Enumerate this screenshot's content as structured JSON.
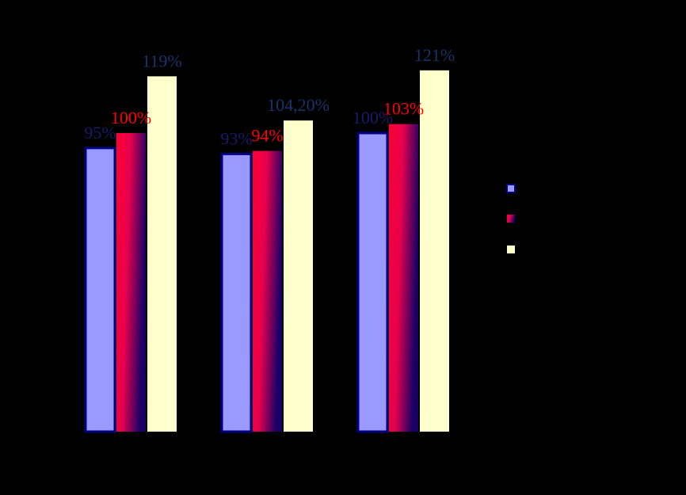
{
  "chart_data": {
    "type": "bar",
    "title": "",
    "xlabel": "",
    "ylabel": "",
    "categories": [
      "",
      "",
      ""
    ],
    "ylim": [
      0,
      1.25
    ],
    "grid": false,
    "legend_position": "right",
    "series": [
      {
        "values": [
          0.95,
          0.93,
          1.0
        ],
        "labels": [
          "95%",
          "93%",
          "100%"
        ],
        "color": "#9999ff",
        "border": "#000080",
        "label_color": "#1a1a66"
      },
      {
        "values": [
          1.0,
          0.94,
          1.03
        ],
        "labels": [
          "100%",
          "94%",
          "103%"
        ],
        "color": "#ff0033",
        "gradient_to": "#1a0066",
        "label_color": "#ff0000"
      },
      {
        "values": [
          1.19,
          1.042,
          1.21
        ],
        "labels": [
          "119%",
          "104,20%",
          "121%"
        ],
        "color": "#ffffcc",
        "label_color": "#1a3366"
      }
    ]
  },
  "colors": {
    "background": "#000000",
    "series_1": "#9999ff",
    "series_2": "#ff0033",
    "series_3": "#ffffcc"
  }
}
